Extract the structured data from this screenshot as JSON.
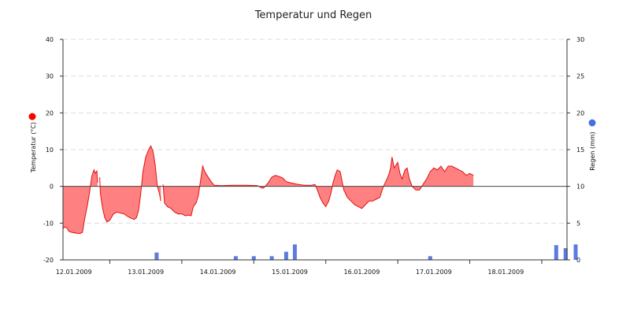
{
  "chart_data": {
    "type": "area+bar",
    "title": "Temperatur und Regen",
    "x_tick_labels": [
      "12.01.2009",
      "13.01.2009",
      "14.01.2009",
      "15.01.2009",
      "16.01.2009",
      "17.01.2009",
      "18.01.2009"
    ],
    "x_range_days": [
      11.85,
      18.85
    ],
    "y_left": {
      "label": "Temperatur (°C)",
      "range": [
        -20,
        40
      ],
      "ticks": [
        40,
        30,
        20,
        10,
        0,
        -10,
        -20
      ],
      "color": "#ff0000"
    },
    "y_right": {
      "label": "Regen (mm)",
      "range": [
        0,
        30
      ],
      "ticks": [
        30,
        25,
        20,
        15,
        10,
        5,
        0
      ],
      "color": "#4a6ee0"
    },
    "grid": true,
    "series": [
      {
        "name": "Temperatur",
        "type": "area",
        "line_color": "#e01010",
        "fill_color": "#ff8080",
        "segments": [
          [
            [
              11.85,
              -11.5
            ],
            [
              11.87,
              -11.1
            ],
            [
              11.9,
              -11.2
            ],
            [
              11.93,
              -12.2
            ],
            [
              11.97,
              -12.5
            ],
            [
              12.0,
              -12.6
            ],
            [
              12.05,
              -12.8
            ],
            [
              12.09,
              -12.8
            ],
            [
              12.12,
              -12.5
            ],
            [
              12.15,
              -9.0
            ],
            [
              12.19,
              -5.0
            ],
            [
              12.22,
              -1.5
            ],
            [
              12.25,
              2.8
            ],
            [
              12.28,
              4.5
            ],
            [
              12.3,
              3.5
            ],
            [
              12.32,
              4.2
            ],
            [
              12.33,
              1.0
            ]
          ],
          [
            [
              12.36,
              2.5
            ],
            [
              12.37,
              -2.0
            ],
            [
              12.4,
              -6.0
            ],
            [
              12.43,
              -8.5
            ],
            [
              12.46,
              -9.7
            ],
            [
              12.5,
              -9.2
            ],
            [
              12.55,
              -7.5
            ],
            [
              12.6,
              -7.0
            ],
            [
              12.65,
              -7.3
            ],
            [
              12.7,
              -7.5
            ],
            [
              12.75,
              -8.2
            ],
            [
              12.8,
              -8.7
            ],
            [
              12.84,
              -9.0
            ],
            [
              12.87,
              -8.5
            ],
            [
              12.9,
              -6.5
            ],
            [
              12.93,
              -2.0
            ],
            [
              12.96,
              4.0
            ],
            [
              13.0,
              8.0
            ],
            [
              13.04,
              10.0
            ],
            [
              13.07,
              11.0
            ],
            [
              13.1,
              9.5
            ],
            [
              13.13,
              6.0
            ],
            [
              13.16,
              0.0
            ],
            [
              13.19,
              -2.0
            ],
            [
              13.21,
              -4.0
            ]
          ],
          [
            [
              13.24,
              0.5
            ],
            [
              13.26,
              -4.5
            ],
            [
              13.3,
              -5.5
            ],
            [
              13.35,
              -6.0
            ],
            [
              13.4,
              -7.0
            ],
            [
              13.45,
              -7.5
            ],
            [
              13.5,
              -7.5
            ],
            [
              13.55,
              -8.0
            ],
            [
              13.6,
              -7.8
            ],
            [
              13.63,
              -8.0
            ],
            [
              13.66,
              -5.5
            ],
            [
              13.7,
              -4.5
            ],
            [
              13.73,
              -2.5
            ],
            [
              13.76,
              1.5
            ],
            [
              13.79,
              5.5
            ],
            [
              13.82,
              4.0
            ],
            [
              13.85,
              3.0
            ],
            [
              13.9,
              1.5
            ],
            [
              13.95,
              0.3
            ],
            [
              14.05,
              0.2
            ],
            [
              14.2,
              0.3
            ],
            [
              14.4,
              0.3
            ],
            [
              14.55,
              0.2
            ],
            [
              14.62,
              -0.5
            ],
            [
              14.65,
              -0.2
            ],
            [
              14.7,
              1.0
            ],
            [
              14.75,
              2.5
            ],
            [
              14.8,
              3.0
            ],
            [
              14.85,
              2.7
            ],
            [
              14.9,
              2.3
            ],
            [
              14.95,
              1.3
            ],
            [
              15.0,
              1.0
            ],
            [
              15.1,
              0.6
            ],
            [
              15.2,
              0.3
            ],
            [
              15.3,
              0.3
            ],
            [
              15.35,
              0.5
            ],
            [
              15.38,
              -0.8
            ],
            [
              15.42,
              -3.0
            ],
            [
              15.46,
              -4.5
            ],
            [
              15.5,
              -5.5
            ],
            [
              15.54,
              -4.0
            ],
            [
              15.57,
              -2.0
            ],
            [
              15.6,
              1.0
            ],
            [
              15.63,
              3.0
            ],
            [
              15.66,
              4.5
            ],
            [
              15.7,
              4.0
            ],
            [
              15.72,
              2.0
            ],
            [
              15.75,
              -1.0
            ],
            [
              15.8,
              -3.0
            ],
            [
              15.85,
              -4.0
            ],
            [
              15.9,
              -5.0
            ],
            [
              15.95,
              -5.5
            ],
            [
              16.0,
              -6.0
            ],
            [
              16.05,
              -5.0
            ],
            [
              16.1,
              -4.0
            ],
            [
              16.15,
              -4.0
            ],
            [
              16.2,
              -3.5
            ],
            [
              16.25,
              -3.0
            ],
            [
              16.3,
              0.0
            ],
            [
              16.35,
              2.0
            ],
            [
              16.38,
              3.5
            ],
            [
              16.4,
              5.0
            ],
            [
              16.42,
              8.0
            ],
            [
              16.45,
              5.0
            ],
            [
              16.5,
              6.5
            ],
            [
              16.53,
              3.5
            ],
            [
              16.56,
              2.0
            ],
            [
              16.6,
              4.5
            ],
            [
              16.63,
              5.0
            ],
            [
              16.66,
              2.0
            ],
            [
              16.7,
              0.0
            ],
            [
              16.75,
              -1.0
            ],
            [
              16.8,
              -1.0
            ],
            [
              16.85,
              0.5
            ],
            [
              16.9,
              2.0
            ],
            [
              16.95,
              4.0
            ],
            [
              17.0,
              5.0
            ],
            [
              17.05,
              4.5
            ],
            [
              17.1,
              5.5
            ],
            [
              17.15,
              4.0
            ],
            [
              17.2,
              5.5
            ],
            [
              17.25,
              5.5
            ],
            [
              17.3,
              5.0
            ],
            [
              17.35,
              4.5
            ],
            [
              17.4,
              4.0
            ],
            [
              17.45,
              3.0
            ],
            [
              17.5,
              3.5
            ],
            [
              17.55,
              3.0
            ]
          ]
        ]
      },
      {
        "name": "Regen",
        "type": "bar",
        "color": "#5b7be0",
        "points": [
          [
            13.15,
            1.0
          ],
          [
            14.25,
            0.5
          ],
          [
            14.5,
            0.5
          ],
          [
            14.75,
            0.5
          ],
          [
            14.95,
            1.1
          ],
          [
            15.07,
            2.1
          ],
          [
            16.95,
            0.5
          ],
          [
            18.7,
            2.0
          ],
          [
            18.83,
            1.6
          ],
          [
            18.97,
            2.1
          ]
        ]
      }
    ]
  }
}
